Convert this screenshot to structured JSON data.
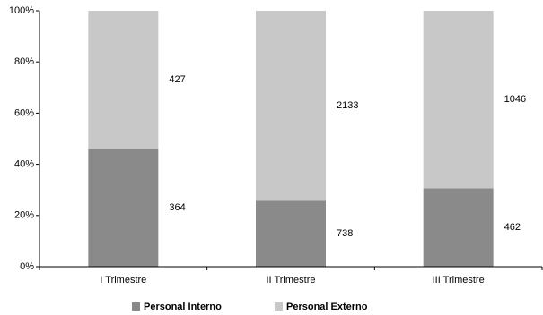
{
  "chart_data": {
    "type": "bar",
    "stack": "percent",
    "categories": [
      "I Trimestre",
      "II Trimestre",
      "III Trimestre"
    ],
    "series": [
      {
        "name": "Personal Interno",
        "color": "#8a8a8a",
        "values": [
          364,
          738,
          462
        ]
      },
      {
        "name": "Personal Externo",
        "color": "#c8c8c8",
        "values": [
          427,
          2133,
          1046
        ]
      }
    ],
    "ylim": [
      0,
      100
    ],
    "yticks": [
      {
        "value": 0,
        "label": "0%"
      },
      {
        "value": 20,
        "label": "20%"
      },
      {
        "value": 40,
        "label": "40%"
      },
      {
        "value": 60,
        "label": "60%"
      },
      {
        "value": 80,
        "label": "80%"
      },
      {
        "value": 100,
        "label": "100%"
      }
    ],
    "grid": false,
    "legend": "bottom"
  }
}
